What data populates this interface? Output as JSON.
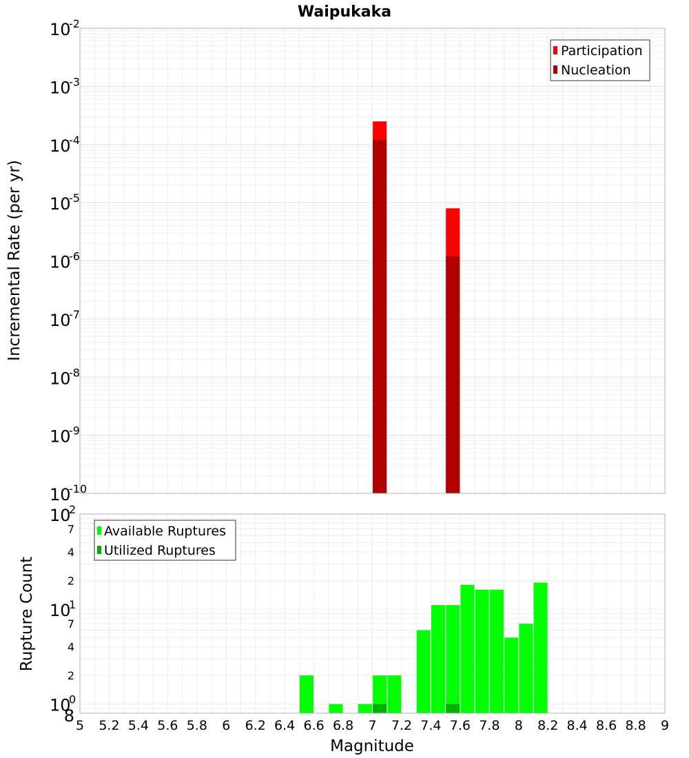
{
  "chart_data": [
    {
      "type": "bar",
      "title": "Waipukaka",
      "xlabel": "",
      "ylabel": "Incremental Rate (per yr)",
      "yscale": "log",
      "ylim": [
        1e-10,
        0.01
      ],
      "xlim": [
        5,
        9
      ],
      "y_tick_exponents": [
        "-10",
        "-9",
        "-8",
        "-7",
        "-6",
        "-5",
        "-4",
        "-3",
        "-2"
      ],
      "y_tick_base": "10",
      "grid": true,
      "legend_position": "top-right",
      "series": [
        {
          "name": "Participation",
          "color": "#ff0000",
          "points": [
            {
              "x": 7.05,
              "y": 0.00025
            },
            {
              "x": 7.55,
              "y": 8e-06
            }
          ]
        },
        {
          "name": "Nucleation",
          "color": "#b00000",
          "points": [
            {
              "x": 7.05,
              "y": 0.00012
            },
            {
              "x": 7.55,
              "y": 1.2e-06
            }
          ]
        }
      ]
    },
    {
      "type": "bar",
      "title": "",
      "xlabel": "Magnitude",
      "ylabel": "Rupture Count",
      "yscale": "log",
      "ylim": [
        0.8,
        100
      ],
      "xlim": [
        5,
        9
      ],
      "x_ticks": [
        "5",
        "5.2",
        "5.4",
        "5.6",
        "5.8",
        "6",
        "6.2",
        "6.4",
        "6.6",
        "6.8",
        "7",
        "7.2",
        "7.4",
        "7.6",
        "7.8",
        "8",
        "8.2",
        "8.4",
        "8.6",
        "8.8",
        "9"
      ],
      "y_major_ticks": [
        {
          "value": 1,
          "base": "10",
          "exp": "0"
        },
        {
          "value": 10,
          "base": "10",
          "exp": "1"
        },
        {
          "value": 100,
          "base": "10",
          "exp": "2"
        }
      ],
      "y_minor_ticks": [
        {
          "value": 0.8,
          "label": "8"
        },
        {
          "value": 2,
          "label": "2"
        },
        {
          "value": 4,
          "label": "4"
        },
        {
          "value": 7,
          "label": "7"
        },
        {
          "value": 20,
          "label": "2"
        },
        {
          "value": 40,
          "label": "4"
        },
        {
          "value": 70,
          "label": "7"
        }
      ],
      "grid": true,
      "legend_position": "top-left",
      "series": [
        {
          "name": "Available Ruptures",
          "color": "#00ff00",
          "points": [
            {
              "x": 6.55,
              "y": 2
            },
            {
              "x": 6.75,
              "y": 1
            },
            {
              "x": 6.95,
              "y": 1
            },
            {
              "x": 7.05,
              "y": 2
            },
            {
              "x": 7.15,
              "y": 2
            },
            {
              "x": 7.35,
              "y": 6
            },
            {
              "x": 7.45,
              "y": 11
            },
            {
              "x": 7.55,
              "y": 11
            },
            {
              "x": 7.65,
              "y": 18
            },
            {
              "x": 7.75,
              "y": 16
            },
            {
              "x": 7.85,
              "y": 16
            },
            {
              "x": 7.95,
              "y": 5
            },
            {
              "x": 8.05,
              "y": 7
            },
            {
              "x": 8.15,
              "y": 19
            }
          ]
        },
        {
          "name": "Utilized Ruptures",
          "color": "#00b000",
          "points": [
            {
              "x": 7.05,
              "y": 1
            },
            {
              "x": 7.55,
              "y": 1
            }
          ]
        }
      ]
    }
  ]
}
